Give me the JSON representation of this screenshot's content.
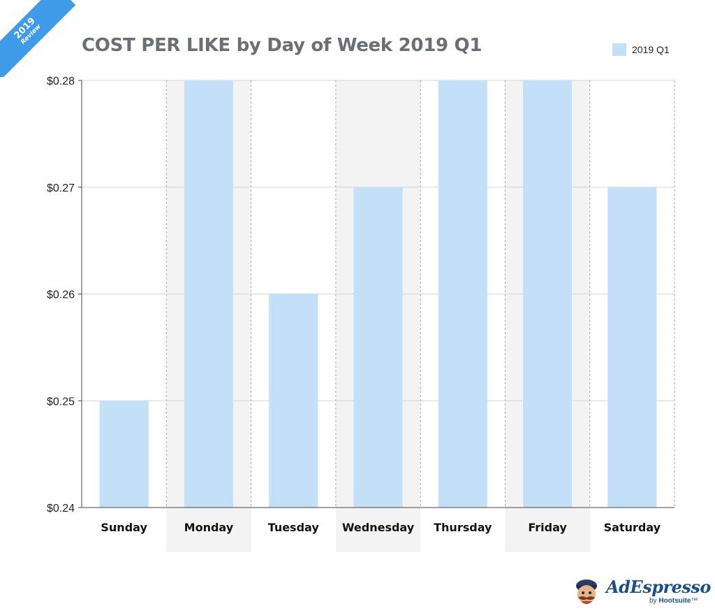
{
  "badge": {
    "year": "2019",
    "label": "Review"
  },
  "legend": {
    "label": "2019 Q1",
    "color": "#c4dff8"
  },
  "brand": {
    "name": "AdEspresso",
    "by": "by",
    "parent": "Hootsuite",
    "tm": "™"
  },
  "chart_data": {
    "type": "bar",
    "title": "COST PER LIKE by Day of Week 2019 Q1",
    "xlabel": "",
    "ylabel": "",
    "categories": [
      "Sunday",
      "Monday",
      "Tuesday",
      "Wednesday",
      "Thursday",
      "Friday",
      "Saturday"
    ],
    "series": [
      {
        "name": "2019 Q1",
        "values": [
          0.25,
          0.28,
          0.26,
          0.27,
          0.28,
          0.28,
          0.27
        ],
        "color": "#c4dff8"
      }
    ],
    "ylim": [
      0.24,
      0.28
    ],
    "yticks": [
      0.24,
      0.25,
      0.26,
      0.27,
      0.28
    ],
    "ytick_labels": [
      "$0.24",
      "$0.25",
      "$0.26",
      "$0.27",
      "$0.28"
    ],
    "shaded_categories": [
      "Monday",
      "Wednesday",
      "Friday"
    ],
    "grid": true,
    "legend_position": "top-right"
  }
}
